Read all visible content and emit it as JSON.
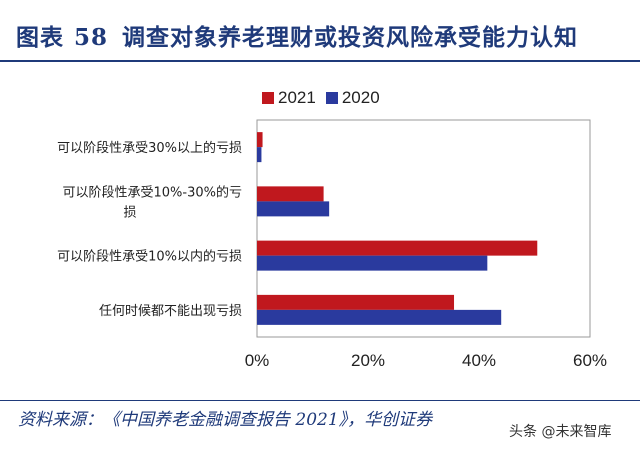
{
  "header": {
    "fig_label": "图表",
    "fig_number": "58",
    "title": "调查对象养老理财或投资风险承受能力认知"
  },
  "footer": {
    "source": "资料来源：《中国养老金融调查报告 2021》，华创证券",
    "watermark": "头条 @未来智库"
  },
  "colors": {
    "title": "#1f3a7a",
    "series_2021": "#c0181e",
    "series_2020": "#2a3a9e"
  },
  "chart_data": {
    "type": "bar",
    "orientation": "horizontal",
    "categories": [
      [
        "可以阶段性承受30%以上的亏损"
      ],
      [
        "可以阶段性承受10%-30%的亏",
        "损"
      ],
      [
        "可以阶段性承受10%以内的亏损"
      ],
      [
        "任何时候都不能出现亏损"
      ]
    ],
    "series": [
      {
        "name": "2021",
        "color": "#c0181e",
        "values": [
          1.0,
          12.0,
          50.5,
          35.5
        ]
      },
      {
        "name": "2020",
        "color": "#2a3a9e",
        "values": [
          0.8,
          13.0,
          41.5,
          44.0
        ]
      }
    ],
    "xlim": [
      0,
      60
    ],
    "xticks": [
      "0%",
      "20%",
      "40%",
      "60%"
    ],
    "xtick_values": [
      0,
      20,
      40,
      60
    ],
    "legend": "top",
    "grid": false
  }
}
